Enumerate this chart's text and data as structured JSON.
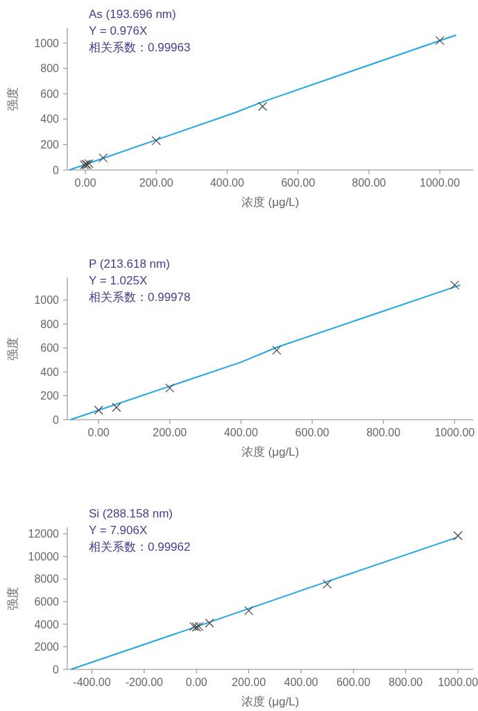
{
  "chart_data": [
    {
      "type": "scatter",
      "xlabel": "浓度 (μg/L)",
      "ylabel": "强度",
      "annotations": [
        "As (193.696 nm)",
        "Y = 0.976X",
        "相关系数：0.99963"
      ],
      "xlim": [
        -51,
        1094
      ],
      "ylim": [
        0,
        1120
      ],
      "xticks": [
        {
          "value": 0,
          "label": "0.00"
        },
        {
          "value": 200,
          "label": "200.00"
        },
        {
          "value": 400,
          "label": "400.00"
        },
        {
          "value": 600,
          "label": "600.00"
        },
        {
          "value": 800,
          "label": "800.00"
        },
        {
          "value": 1000,
          "label": "1000.00"
        }
      ],
      "yticks": [
        0,
        200,
        400,
        600,
        800,
        1000
      ],
      "grid": false,
      "series": [
        {
          "type": "line",
          "marker": "none",
          "color": "#1ea7e4",
          "x": [
            -45,
            423,
            500,
            1046
          ],
          "values": [
            0,
            452,
            536,
            1063
          ]
        },
        {
          "marker": "cross",
          "color": "#444444",
          "x": [
            -3,
            2,
            5,
            10,
            50,
            200,
            500,
            1000
          ],
          "values": [
            40,
            45,
            40,
            50,
            95,
            230,
            500,
            1020
          ]
        }
      ]
    },
    {
      "type": "scatter",
      "xlabel": "浓度 (μg/L)",
      "ylabel": "强度",
      "annotations": [
        "P (213.618 nm)",
        "Y = 1.025X",
        "相关系数：0.99978"
      ],
      "xlim": [
        -88,
        1052
      ],
      "ylim": [
        0,
        1190
      ],
      "xticks": [
        {
          "value": 0,
          "label": "0.00"
        },
        {
          "value": 200,
          "label": "200.00"
        },
        {
          "value": 400,
          "label": "400.00"
        },
        {
          "value": 600,
          "label": "600.00"
        },
        {
          "value": 800,
          "label": "800.00"
        },
        {
          "value": 1000,
          "label": "1000.00"
        }
      ],
      "yticks": [
        0,
        200,
        400,
        600,
        800,
        1000
      ],
      "grid": false,
      "series": [
        {
          "type": "line",
          "marker": "none",
          "color": "#1ea7e4",
          "x": [
            -79,
            400,
            500,
            1016
          ],
          "values": [
            0,
            481,
            605,
            1127
          ]
        },
        {
          "marker": "cross",
          "color": "#444444",
          "x": [
            0,
            50,
            200,
            500,
            1000
          ],
          "values": [
            80,
            103,
            265,
            581,
            1127
          ]
        }
      ]
    },
    {
      "type": "scatter",
      "xlabel": "浓度 (μg/L)",
      "ylabel": "强度",
      "annotations": [
        "Si (288.158 nm)",
        "Y = 7.906X",
        "相关系数：0.99962"
      ],
      "xlim": [
        -494,
        1058
      ],
      "ylim": [
        0,
        12600
      ],
      "xticks": [
        {
          "value": -400,
          "label": "-400.00"
        },
        {
          "value": -200,
          "label": "-200.00"
        },
        {
          "value": 0,
          "label": "0.00"
        },
        {
          "value": 200,
          "label": "200.00"
        },
        {
          "value": 400,
          "label": "400.00"
        },
        {
          "value": 600,
          "label": "600.00"
        },
        {
          "value": 800,
          "label": "800.00"
        },
        {
          "value": 1000,
          "label": "1000.00"
        }
      ],
      "yticks": [
        0,
        2000,
        4000,
        6000,
        8000,
        10000,
        12000
      ],
      "grid": false,
      "series": [
        {
          "type": "line",
          "marker": "none",
          "color": "#1ea7e4",
          "x": [
            -480,
            0,
            500,
            997
          ],
          "values": [
            0,
            3790,
            7780,
            11700
          ]
        },
        {
          "marker": "cross",
          "color": "#444444",
          "x": [
            -10,
            0,
            10,
            50,
            200,
            500,
            1000
          ],
          "values": [
            3800,
            3750,
            3800,
            4100,
            5200,
            7550,
            11850
          ]
        }
      ]
    }
  ]
}
